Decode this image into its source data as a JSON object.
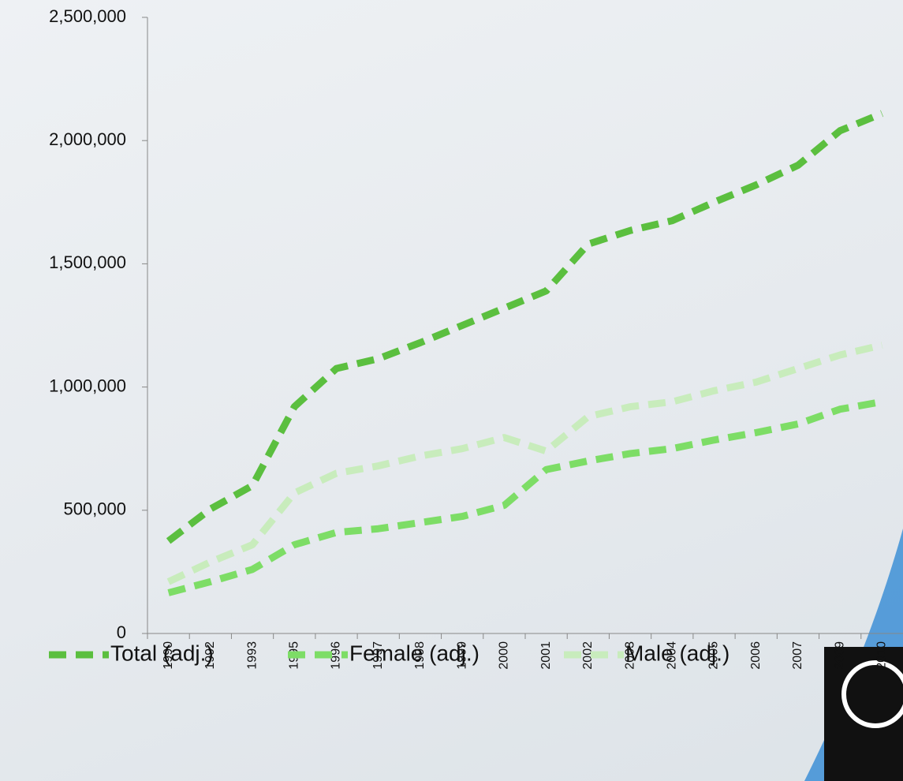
{
  "chart_data": {
    "type": "line",
    "categories": [
      "1990",
      "1992",
      "1993",
      "1995",
      "1996",
      "1997",
      "1998",
      "1999",
      "2000",
      "2001",
      "2002",
      "2003",
      "2004",
      "2005",
      "2006",
      "2007",
      "2009",
      "2010"
    ],
    "series": [
      {
        "name": "Total (adj.)",
        "color": "#5bbf3f",
        "values": [
          375000,
          505000,
          600000,
          920000,
          1075000,
          1115000,
          1180000,
          1250000,
          1320000,
          1390000,
          1580000,
          1635000,
          1675000,
          1750000,
          1820000,
          1900000,
          2040000,
          2110000
        ]
      },
      {
        "name": "Female (adj.)",
        "color": "#7ddd66",
        "values": [
          165000,
          210000,
          260000,
          360000,
          410000,
          425000,
          450000,
          475000,
          520000,
          665000,
          700000,
          730000,
          750000,
          785000,
          815000,
          850000,
          910000,
          940000
        ]
      },
      {
        "name": "Male (adj.)",
        "color": "#c8ecbc",
        "values": [
          210000,
          290000,
          360000,
          570000,
          650000,
          680000,
          720000,
          750000,
          795000,
          740000,
          880000,
          920000,
          940000,
          985000,
          1020000,
          1075000,
          1130000,
          1170000
        ]
      }
    ],
    "ylim": [
      0,
      2500000
    ],
    "yticks": [
      0,
      {
        "value": 500000,
        "label": "500,000"
      },
      {
        "value": 1000000,
        "label": "1,000,000"
      },
      {
        "value": 1500000,
        "label": "1,500,000"
      },
      {
        "value": 2000000,
        "label": "2,000,000"
      },
      {
        "value": 2500000,
        "label": "2,500,000"
      }
    ]
  }
}
